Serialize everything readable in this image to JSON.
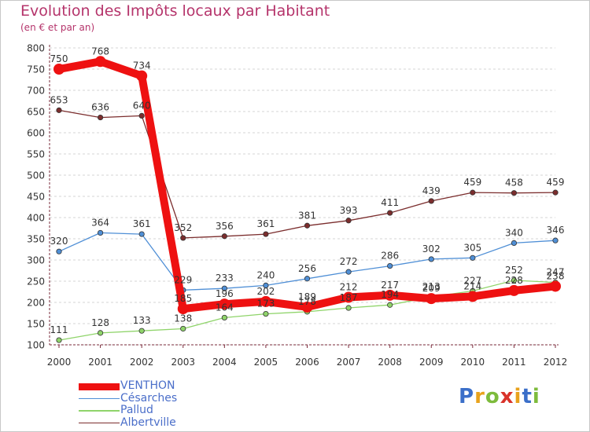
{
  "header": {
    "title": "Evolution des Impôts locaux par Habitant",
    "subtitle": "(en € et par an)"
  },
  "logo": {
    "text": "Proxiti",
    "letters": [
      "P",
      "r",
      "o",
      "x",
      "i",
      "t",
      "i"
    ],
    "colors": [
      "#3b6fc9",
      "#e8a21c",
      "#7dbb3c",
      "#d9332a",
      "#e8a21c",
      "#3b6fc9",
      "#7dbb3c"
    ]
  },
  "chart_data": {
    "type": "line",
    "title": "Evolution des Impôts locaux par Habitant",
    "subtitle": "(en € et par an)",
    "xlabel": "",
    "ylabel": "",
    "x": [
      "2000",
      "2001",
      "2002",
      "2003",
      "2004",
      "2005",
      "2006",
      "2007",
      "2008",
      "2009",
      "2010",
      "2011",
      "2012"
    ],
    "ylim": [
      100,
      800
    ],
    "yticks": [
      100,
      150,
      200,
      250,
      300,
      350,
      400,
      450,
      500,
      550,
      600,
      650,
      700,
      750,
      800
    ],
    "grid": "horizontal dashed",
    "legend_position": "bottom-left",
    "series": [
      {
        "name": "VENTHON",
        "color": "#ee1111",
        "values": [
          750,
          768,
          734,
          185,
          196,
          202,
          189,
          212,
          217,
          209,
          214,
          228,
          238
        ]
      },
      {
        "name": "Césarches",
        "color": "#4f8fd6",
        "values": [
          320,
          364,
          361,
          229,
          233,
          240,
          256,
          272,
          286,
          302,
          305,
          340,
          346
        ]
      },
      {
        "name": "Pallud",
        "color": "#8fd46a",
        "values": [
          111,
          128,
          133,
          138,
          164,
          173,
          178,
          187,
          194,
          213,
          227,
          252,
          247
        ]
      },
      {
        "name": "Albertville",
        "color": "#7b2d2d",
        "values": [
          653,
          636,
          640,
          352,
          356,
          361,
          381,
          393,
          411,
          439,
          459,
          458,
          459
        ]
      }
    ]
  }
}
